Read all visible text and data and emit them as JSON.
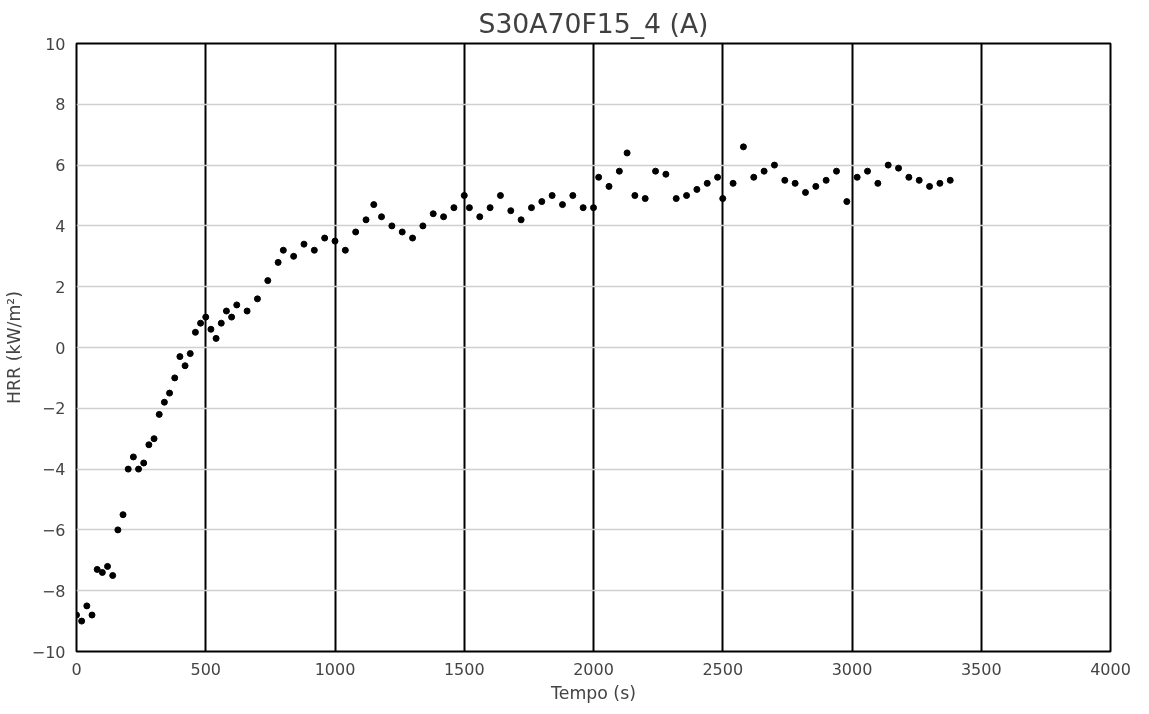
{
  "chart_data": {
    "type": "scatter",
    "title": "S30A70F15_4 (A)",
    "xlabel": "Tempo (s)",
    "ylabel": "HRR (kW/m²)",
    "xlim": [
      0,
      4000
    ],
    "xticks": [
      0,
      500,
      1000,
      1500,
      2000,
      2500,
      3000,
      3500,
      4000
    ],
    "ylim": [
      -10,
      10
    ],
    "yticks": [
      -10,
      -8,
      -6,
      -4,
      -2,
      0,
      2,
      4,
      6,
      8,
      10
    ],
    "grid": true,
    "marker": "circle",
    "series": [
      {
        "color": "#000000",
        "x": [
          0,
          20,
          40,
          60,
          80,
          100,
          120,
          140,
          160,
          180,
          200,
          220,
          240,
          260,
          280,
          300,
          320,
          340,
          360,
          380,
          400,
          420,
          440,
          460,
          480,
          500,
          520,
          540,
          560,
          580,
          600,
          620,
          660,
          700,
          740,
          780,
          800,
          840,
          880,
          920,
          960,
          1000,
          1040,
          1080,
          1120,
          1150,
          1180,
          1220,
          1260,
          1300,
          1340,
          1380,
          1420,
          1460,
          1500,
          1520,
          1560,
          1600,
          1640,
          1680,
          1720,
          1760,
          1800,
          1840,
          1880,
          1920,
          1960,
          2000,
          2020,
          2060,
          2100,
          2130,
          2160,
          2200,
          2240,
          2280,
          2320,
          2360,
          2400,
          2440,
          2480,
          2500,
          2540,
          2580,
          2620,
          2660,
          2700,
          2740,
          2780,
          2820,
          2860,
          2900,
          2940,
          2980,
          3020,
          3060,
          3100,
          3140,
          3180,
          3220,
          3260,
          3300,
          3340,
          3380
        ],
        "values": [
          -8.8,
          -9.0,
          -8.5,
          -8.8,
          -7.3,
          -7.4,
          -7.2,
          -7.5,
          -6.0,
          -5.5,
          -4.0,
          -3.6,
          -4.0,
          -3.8,
          -3.2,
          -3.0,
          -2.2,
          -1.8,
          -1.5,
          -1.0,
          -0.3,
          -0.6,
          -0.2,
          0.5,
          0.8,
          1.0,
          0.6,
          0.3,
          0.8,
          1.2,
          1.0,
          1.4,
          1.2,
          1.6,
          2.2,
          2.8,
          3.2,
          3.0,
          3.4,
          3.2,
          3.6,
          3.5,
          3.2,
          3.8,
          4.2,
          4.7,
          4.3,
          4.0,
          3.8,
          3.6,
          4.0,
          4.4,
          4.3,
          4.6,
          5.0,
          4.6,
          4.3,
          4.6,
          5.0,
          4.5,
          4.2,
          4.6,
          4.8,
          5.0,
          4.7,
          5.0,
          4.6,
          4.6,
          5.6,
          5.3,
          5.8,
          6.4,
          5.0,
          4.9,
          5.8,
          5.7,
          4.9,
          5.0,
          5.2,
          5.4,
          5.6,
          4.9,
          5.4,
          6.6,
          5.6,
          5.8,
          6.0,
          5.5,
          5.4,
          5.1,
          5.3,
          5.5,
          5.8,
          4.8,
          5.6,
          5.8,
          5.4,
          6.0,
          5.9,
          5.6,
          5.5,
          5.3,
          5.4,
          5.5
        ]
      }
    ]
  }
}
